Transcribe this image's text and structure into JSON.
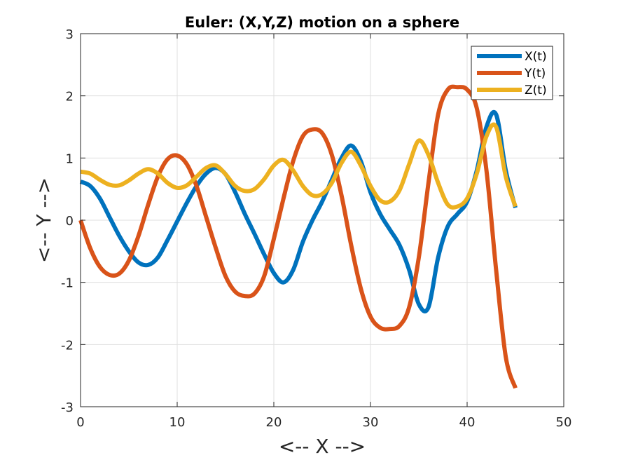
{
  "chart_data": {
    "type": "line",
    "title": "Euler: (X,Y,Z) motion on a sphere",
    "xlabel": "<-- X -->",
    "ylabel": "<-- Y -->",
    "xlim": [
      0,
      50
    ],
    "ylim": [
      -3,
      3
    ],
    "xticks": [
      0,
      10,
      20,
      30,
      40,
      50
    ],
    "yticks": [
      -3,
      -2,
      -1,
      0,
      1,
      2,
      3
    ],
    "grid": true,
    "legend_position": "top-right",
    "x": [
      0,
      1,
      2,
      3,
      4,
      5,
      6,
      7,
      8,
      9,
      10,
      11,
      12,
      13,
      14,
      15,
      16,
      17,
      18,
      19,
      20,
      21,
      22,
      23,
      24,
      25,
      26,
      27,
      28,
      29,
      30,
      31,
      32,
      33,
      34,
      35,
      36,
      37,
      38,
      39,
      40,
      41,
      42,
      43,
      44,
      45
    ],
    "series": [
      {
        "name": "X(t)",
        "color": "#0072BD",
        "values": [
          0.62,
          0.55,
          0.35,
          0.05,
          -0.25,
          -0.5,
          -0.68,
          -0.72,
          -0.6,
          -0.32,
          -0.02,
          0.28,
          0.55,
          0.75,
          0.84,
          0.74,
          0.45,
          0.1,
          -0.22,
          -0.55,
          -0.85,
          -1.0,
          -0.8,
          -0.35,
          0.0,
          0.3,
          0.65,
          1.0,
          1.2,
          0.95,
          0.45,
          0.1,
          -0.15,
          -0.4,
          -0.8,
          -1.35,
          -1.4,
          -0.6,
          -0.1,
          0.1,
          0.3,
          0.8,
          1.5,
          1.7,
          0.8,
          0.2
        ]
      },
      {
        "name": "Y(t)",
        "color": "#D95319",
        "values": [
          0.0,
          -0.45,
          -0.75,
          -0.88,
          -0.86,
          -0.65,
          -0.25,
          0.25,
          0.7,
          0.98,
          1.04,
          0.9,
          0.55,
          0.05,
          -0.45,
          -0.9,
          -1.15,
          -1.22,
          -1.18,
          -0.9,
          -0.3,
          0.35,
          0.95,
          1.35,
          1.46,
          1.4,
          1.05,
          0.4,
          -0.4,
          -1.1,
          -1.55,
          -1.73,
          -1.75,
          -1.7,
          -1.4,
          -0.6,
          0.6,
          1.7,
          2.1,
          2.14,
          2.1,
          1.8,
          0.8,
          -0.8,
          -2.2,
          -2.7
        ]
      },
      {
        "name": "Z(t)",
        "color": "#EDB120",
        "values": [
          0.78,
          0.75,
          0.65,
          0.57,
          0.56,
          0.64,
          0.75,
          0.82,
          0.75,
          0.6,
          0.52,
          0.56,
          0.7,
          0.84,
          0.88,
          0.74,
          0.55,
          0.47,
          0.5,
          0.66,
          0.88,
          0.97,
          0.8,
          0.55,
          0.4,
          0.42,
          0.6,
          0.92,
          1.1,
          0.88,
          0.55,
          0.32,
          0.3,
          0.48,
          0.9,
          1.28,
          1.05,
          0.6,
          0.25,
          0.22,
          0.35,
          0.75,
          1.35,
          1.5,
          0.7,
          0.22
        ]
      }
    ]
  }
}
